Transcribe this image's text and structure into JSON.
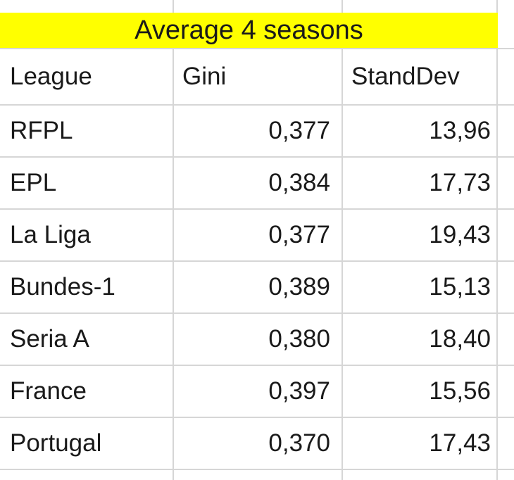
{
  "chart_data": {
    "type": "table",
    "title": "Average 4 seasons",
    "columns": [
      "League",
      "Gini",
      "StandDev"
    ],
    "rows": [
      [
        "RFPL",
        "0,377",
        "13,96"
      ],
      [
        "EPL",
        "0,384",
        "17,73"
      ],
      [
        "La Liga",
        "0,377",
        "19,43"
      ],
      [
        "Bundes-1",
        "0,389",
        "15,13"
      ],
      [
        "Seria A",
        "0,380",
        "18,40"
      ],
      [
        "France",
        "0,397",
        "15,56"
      ],
      [
        "Portugal",
        "0,370",
        "17,43"
      ]
    ]
  },
  "colors": {
    "title_bg": "#ffff00",
    "gridline": "#d6d6d6",
    "text": "#1a1a1a",
    "background": "#ffffff"
  }
}
